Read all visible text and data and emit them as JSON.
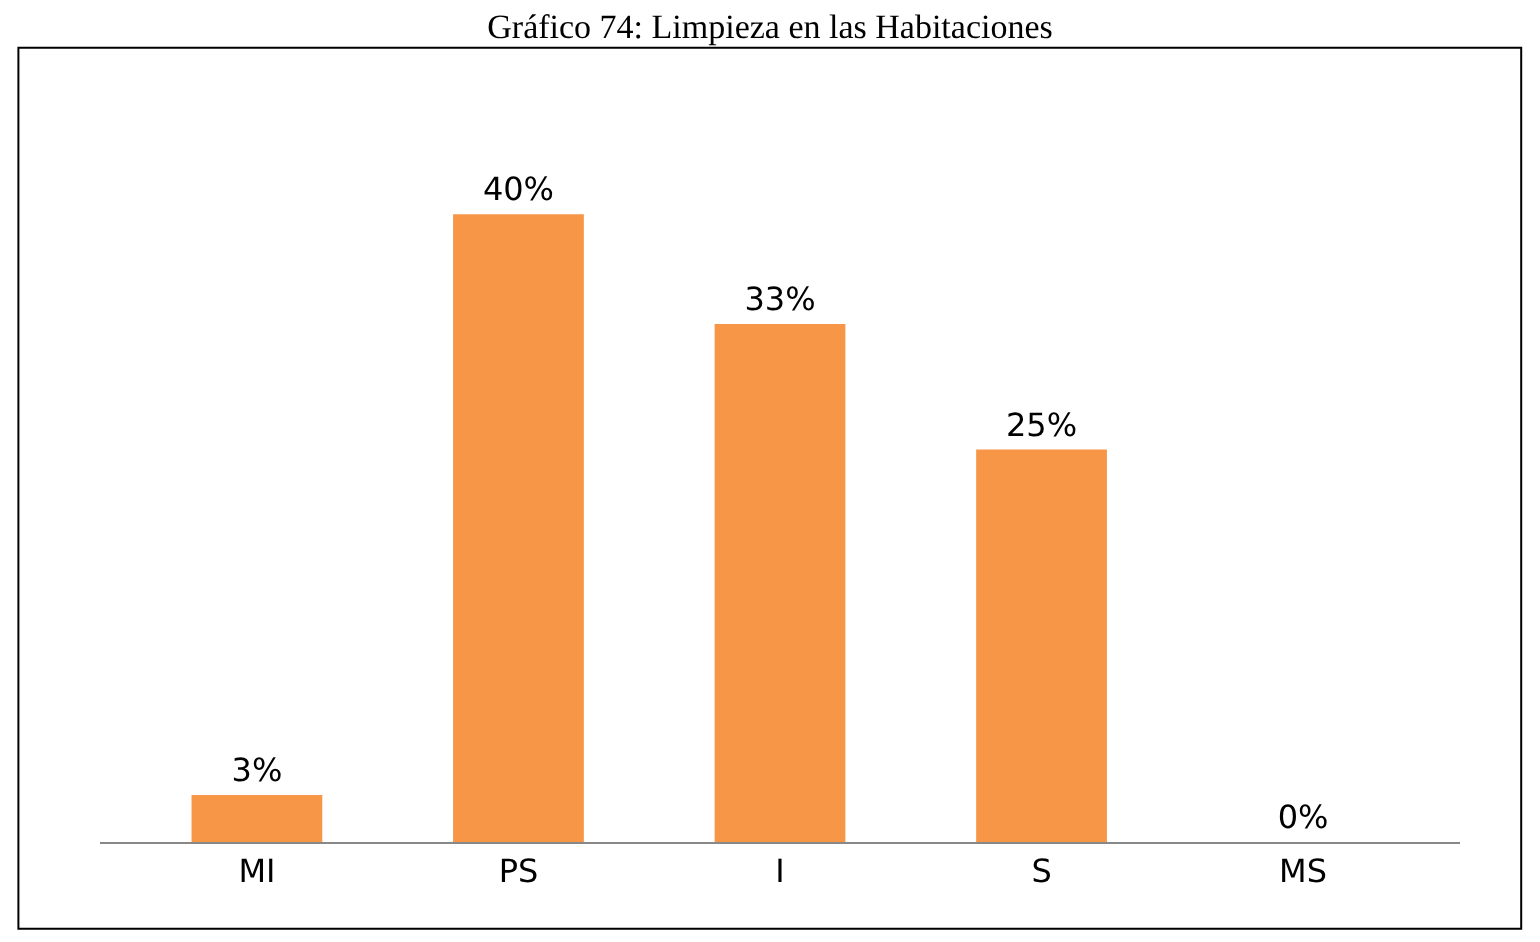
{
  "chart_data": {
    "type": "bar",
    "title": "Gráfico 74: Limpieza en las Habitaciones",
    "categories": [
      "MI",
      "PS",
      "I",
      "S",
      "MS"
    ],
    "values": [
      3,
      40,
      33,
      25,
      0
    ],
    "value_labels": [
      "3%",
      "40%",
      "33%",
      "25%",
      "0%"
    ],
    "color": "#f79646"
  }
}
